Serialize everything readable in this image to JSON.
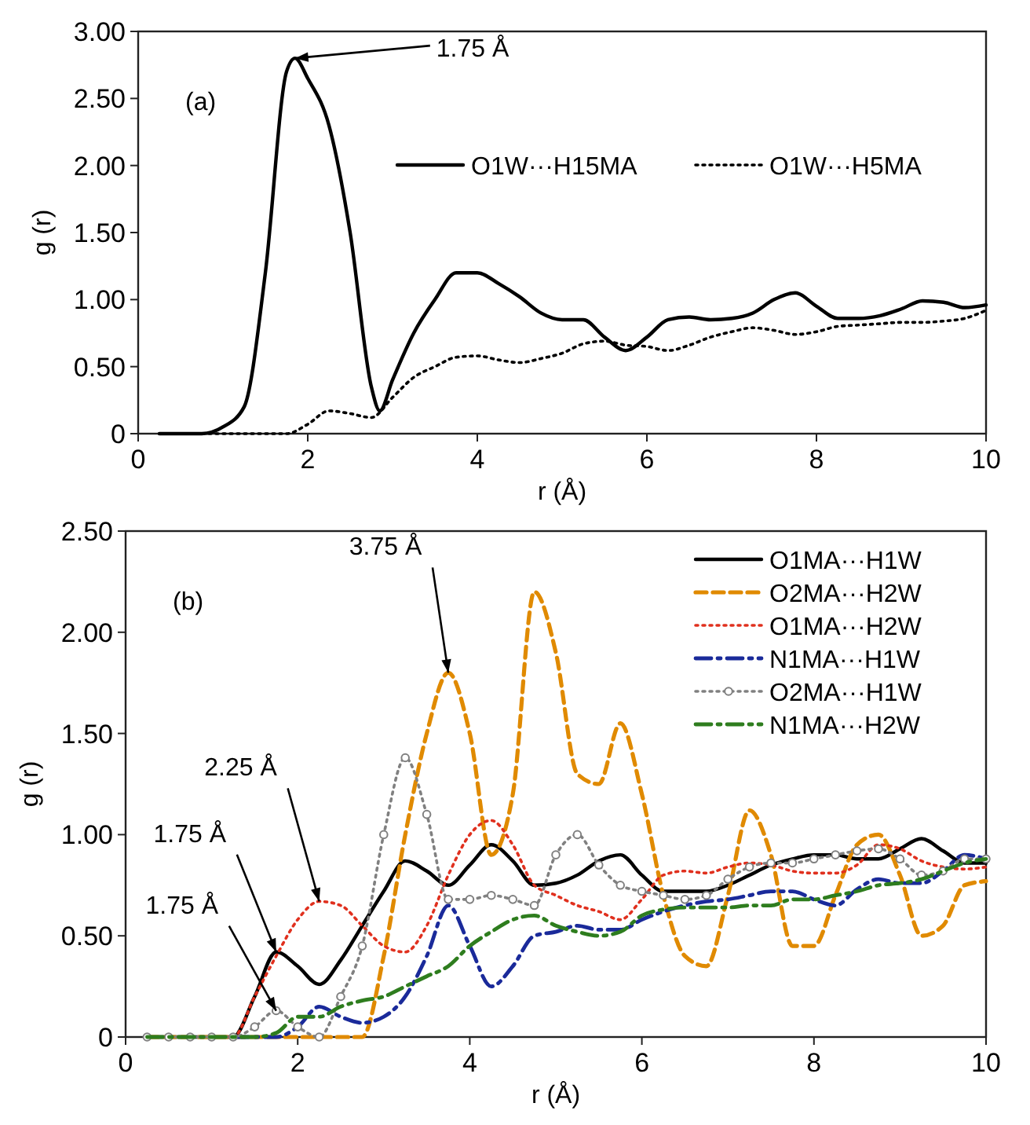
{
  "chart_data": [
    {
      "type": "line",
      "xlabel": "r (Å)",
      "ylabel": "g (r)",
      "xlim": [
        0,
        10
      ],
      "ylim": [
        0,
        3
      ],
      "xticks": [
        0,
        2,
        4,
        6,
        8,
        10
      ],
      "yticks": [
        0,
        {
          "value": 0.5,
          "label": "0.50"
        },
        {
          "value": 1,
          "label": "1.00"
        },
        {
          "value": 1.5,
          "label": "1.50"
        },
        {
          "value": 2,
          "label": "2.00"
        },
        {
          "value": 2.5,
          "label": "2.50"
        },
        {
          "value": 3,
          "label": "3.00"
        }
      ],
      "grid": false,
      "legend": "top right",
      "annotations": [
        "(a)",
        {
          "text": "1.75 Å",
          "x": 1.85,
          "y": 2.8
        }
      ],
      "series": [
        {
          "name": "O1W···H15MA",
          "color": "#000000",
          "line_style": "solid",
          "x": [
            0.25,
            0.5,
            0.75,
            1,
            1.25,
            1.5,
            1.75,
            1.85,
            2,
            2.25,
            2.5,
            2.75,
            2.85,
            3,
            3.25,
            3.5,
            3.75,
            4,
            4.25,
            4.5,
            4.75,
            5,
            5.25,
            5.5,
            5.75,
            6,
            6.25,
            6.5,
            6.75,
            7,
            7.25,
            7.5,
            7.75,
            8,
            8.25,
            8.5,
            8.75,
            9,
            9.25,
            9.5,
            9.75,
            10
          ],
          "values": [
            0,
            0,
            0,
            0.05,
            0.2,
            1.2,
            2.7,
            2.8,
            2.65,
            2.3,
            1.5,
            0.35,
            0.17,
            0.4,
            0.75,
            1.0,
            1.2,
            1.2,
            1.12,
            1.02,
            0.9,
            0.85,
            0.85,
            0.72,
            0.62,
            0.72,
            0.85,
            0.87,
            0.85,
            0.86,
            0.9,
            1.0,
            1.05,
            0.95,
            0.86,
            0.86,
            0.88,
            0.93,
            0.99,
            0.98,
            0.94,
            0.96
          ]
        },
        {
          "name": "O1W···H5MA",
          "color": "#000000",
          "line_style": "dotted",
          "x": [
            0.25,
            0.5,
            0.75,
            1,
            1.25,
            1.5,
            1.75,
            2,
            2.25,
            2.5,
            2.75,
            3,
            3.25,
            3.5,
            3.75,
            4,
            4.25,
            4.5,
            4.75,
            5,
            5.25,
            5.5,
            5.75,
            6,
            6.25,
            6.5,
            6.75,
            7,
            7.25,
            7.5,
            7.75,
            8,
            8.25,
            8.5,
            8.75,
            9,
            9.25,
            9.5,
            9.75,
            10
          ],
          "values": [
            0,
            0,
            0,
            0,
            0,
            0,
            0,
            0.07,
            0.17,
            0.15,
            0.12,
            0.27,
            0.42,
            0.5,
            0.57,
            0.58,
            0.55,
            0.53,
            0.56,
            0.6,
            0.67,
            0.69,
            0.66,
            0.65,
            0.62,
            0.66,
            0.72,
            0.76,
            0.79,
            0.77,
            0.74,
            0.76,
            0.8,
            0.81,
            0.82,
            0.83,
            0.83,
            0.84,
            0.86,
            0.92
          ]
        }
      ]
    },
    {
      "type": "line",
      "xlabel": "r (Å)",
      "ylabel": "g (r)",
      "xlim": [
        0,
        10
      ],
      "ylim": [
        0,
        2.5
      ],
      "xticks": [
        0,
        2,
        4,
        6,
        8,
        10
      ],
      "yticks": [
        0,
        {
          "value": 0.5,
          "label": "0.50"
        },
        {
          "value": 1,
          "label": "1.00"
        },
        {
          "value": 1.5,
          "label": "1.50"
        },
        {
          "value": 2,
          "label": "2.00"
        },
        {
          "value": 2.5,
          "label": "2.50"
        }
      ],
      "grid": false,
      "legend": "top right",
      "x": [
        0.25,
        0.5,
        0.75,
        1,
        1.25,
        1.5,
        1.75,
        2,
        2.25,
        2.5,
        2.75,
        3,
        3.25,
        3.5,
        3.75,
        4,
        4.25,
        4.5,
        4.75,
        5,
        5.25,
        5.5,
        5.75,
        6,
        6.25,
        6.5,
        6.75,
        7,
        7.25,
        7.5,
        7.75,
        8,
        8.25,
        8.5,
        8.75,
        9,
        9.25,
        9.5,
        9.75,
        10
      ],
      "annotations": [
        "(b)",
        {
          "text": "3.75 Å",
          "x": 3.75,
          "y": 1.8
        },
        {
          "text": "2.25 Å",
          "x": 2.25,
          "y": 0.67
        },
        {
          "text": "1.75 Å",
          "x": 1.75,
          "y": 0.42
        },
        {
          "text": "1.75 Å",
          "x": 1.75,
          "y": 0.13
        }
      ],
      "series": [
        {
          "name": "O1MA···H1W",
          "color": "#000000",
          "line_style": "solid",
          "values": [
            0,
            0,
            0,
            0,
            0,
            0.2,
            0.42,
            0.35,
            0.26,
            0.38,
            0.55,
            0.72,
            0.87,
            0.82,
            0.75,
            0.85,
            0.95,
            0.87,
            0.75,
            0.76,
            0.8,
            0.87,
            0.9,
            0.8,
            0.72,
            0.72,
            0.72,
            0.75,
            0.8,
            0.85,
            0.88,
            0.9,
            0.9,
            0.88,
            0.88,
            0.93,
            0.98,
            0.92,
            0.86,
            0.86
          ]
        },
        {
          "name": "O2MA···H2W",
          "color": "#e08a00",
          "line_style": "dashed",
          "values": [
            0,
            0,
            0,
            0,
            0,
            0,
            0,
            0,
            0,
            0,
            0,
            0.4,
            1.0,
            1.5,
            1.8,
            1.5,
            0.9,
            1.2,
            2.2,
            1.9,
            1.3,
            1.25,
            1.55,
            1.2,
            0.7,
            0.4,
            0.35,
            0.7,
            1.12,
            0.9,
            0.45,
            0.45,
            0.7,
            0.95,
            1.0,
            0.8,
            0.5,
            0.55,
            0.75,
            0.77
          ]
        },
        {
          "name": "O1MA···H2W",
          "color": "#e0301e",
          "line_style": "dotted",
          "values": [
            null,
            null,
            null,
            0,
            0,
            0.2,
            0.4,
            0.58,
            0.67,
            0.65,
            0.55,
            0.45,
            0.42,
            0.55,
            0.8,
            1.0,
            1.07,
            0.95,
            0.75,
            0.7,
            0.65,
            0.62,
            0.58,
            0.68,
            0.8,
            0.82,
            0.81,
            0.84,
            0.86,
            0.85,
            0.82,
            0.81,
            0.81,
            0.85,
            0.95,
            0.93,
            0.87,
            0.84,
            0.83,
            0.84
          ]
        },
        {
          "name": "N1MA···H1W",
          "color": "#1a2a9a",
          "line_style": "dashdot",
          "values": [
            null,
            null,
            null,
            null,
            0,
            0,
            0,
            0.05,
            0.15,
            0.1,
            0.07,
            0.1,
            0.2,
            0.4,
            0.65,
            0.45,
            0.25,
            0.35,
            0.5,
            0.52,
            0.55,
            0.53,
            0.53,
            0.58,
            0.62,
            0.65,
            0.67,
            0.68,
            0.7,
            0.72,
            0.72,
            0.68,
            0.65,
            0.73,
            0.78,
            0.76,
            0.76,
            0.82,
            0.9,
            0.88
          ]
        },
        {
          "name": "O2MA···H1W",
          "color": "#808080",
          "line_style": "dotted",
          "marker": "circle",
          "values": [
            0,
            0,
            0,
            0,
            0,
            0.05,
            0.13,
            0.05,
            0,
            0.2,
            0.45,
            1.0,
            1.38,
            1.1,
            0.68,
            0.68,
            0.7,
            0.68,
            0.65,
            0.9,
            1.0,
            0.85,
            0.75,
            0.72,
            0.7,
            0.68,
            0.7,
            0.78,
            0.84,
            0.86,
            0.86,
            0.88,
            0.9,
            0.92,
            0.93,
            0.88,
            0.8,
            0.82,
            0.88,
            0.88
          ]
        },
        {
          "name": "N1MA···H2W",
          "color": "#2e7d1e",
          "line_style": "dashdot",
          "values": [
            0,
            0,
            0,
            0,
            0,
            0,
            0.02,
            0.1,
            0.1,
            0.15,
            0.18,
            0.2,
            0.25,
            0.3,
            0.35,
            0.45,
            0.52,
            0.58,
            0.6,
            0.55,
            0.52,
            0.5,
            0.52,
            0.6,
            0.63,
            0.64,
            0.64,
            0.64,
            0.65,
            0.65,
            0.68,
            0.68,
            0.7,
            0.72,
            0.75,
            0.76,
            0.78,
            0.82,
            0.86,
            0.88
          ]
        }
      ]
    }
  ]
}
